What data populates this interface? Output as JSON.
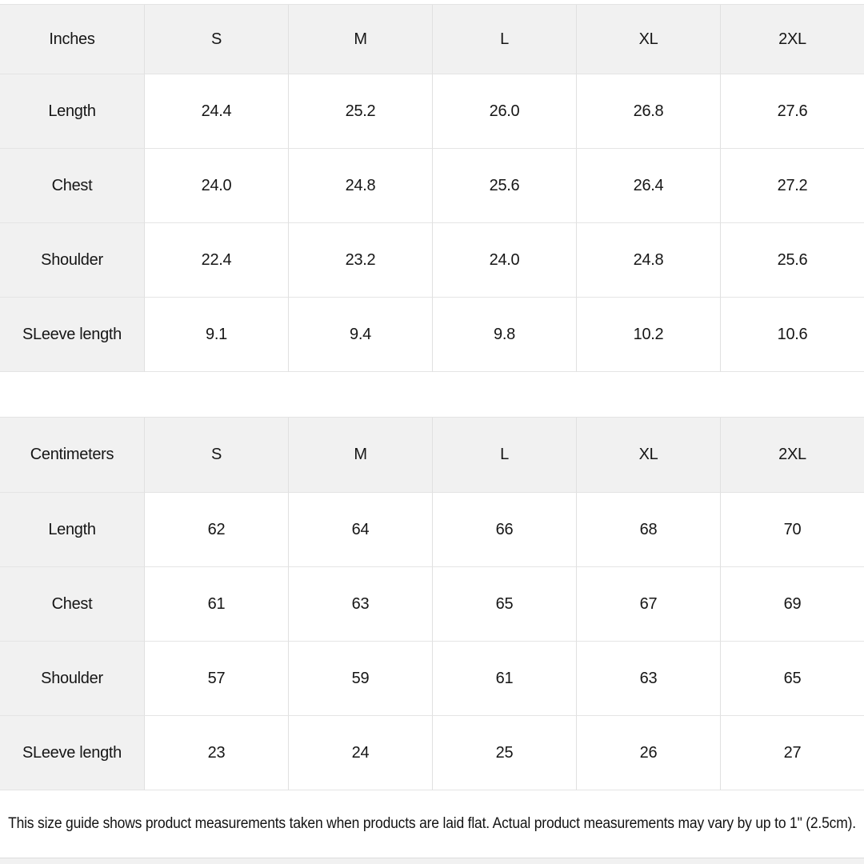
{
  "chart_data": [
    {
      "type": "table",
      "unit": "Inches",
      "sizes": [
        "S",
        "M",
        "L",
        "XL",
        "2XL"
      ],
      "rows": [
        {
          "label": "Length",
          "values": [
            "24.4",
            "25.2",
            "26.0",
            "26.8",
            "27.6"
          ]
        },
        {
          "label": "Chest",
          "values": [
            "24.0",
            "24.8",
            "25.6",
            "26.4",
            "27.2"
          ]
        },
        {
          "label": "Shoulder",
          "values": [
            "22.4",
            "23.2",
            "24.0",
            "24.8",
            "25.6"
          ]
        },
        {
          "label": "SLeeve length",
          "values": [
            "9.1",
            "9.4",
            "9.8",
            "10.2",
            "10.6"
          ]
        }
      ]
    },
    {
      "type": "table",
      "unit": "Centimeters",
      "sizes": [
        "S",
        "M",
        "L",
        "XL",
        "2XL"
      ],
      "rows": [
        {
          "label": "Length",
          "values": [
            "62",
            "64",
            "66",
            "68",
            "70"
          ]
        },
        {
          "label": "Chest",
          "values": [
            "61",
            "63",
            "65",
            "67",
            "69"
          ]
        },
        {
          "label": "Shoulder",
          "values": [
            "57",
            "59",
            "61",
            "63",
            "65"
          ]
        },
        {
          "label": "SLeeve length",
          "values": [
            "23",
            "24",
            "25",
            "26",
            "27"
          ]
        }
      ]
    }
  ],
  "footer_note": "This size guide shows product measurements taken when products are laid flat.  Actual product measurements may vary by up to 1\" (2.5cm).",
  "colors": {
    "header_bg": "#f1f1f1",
    "border": "#e4e4e4",
    "text": "#161616",
    "page_bg": "#ffffff"
  }
}
